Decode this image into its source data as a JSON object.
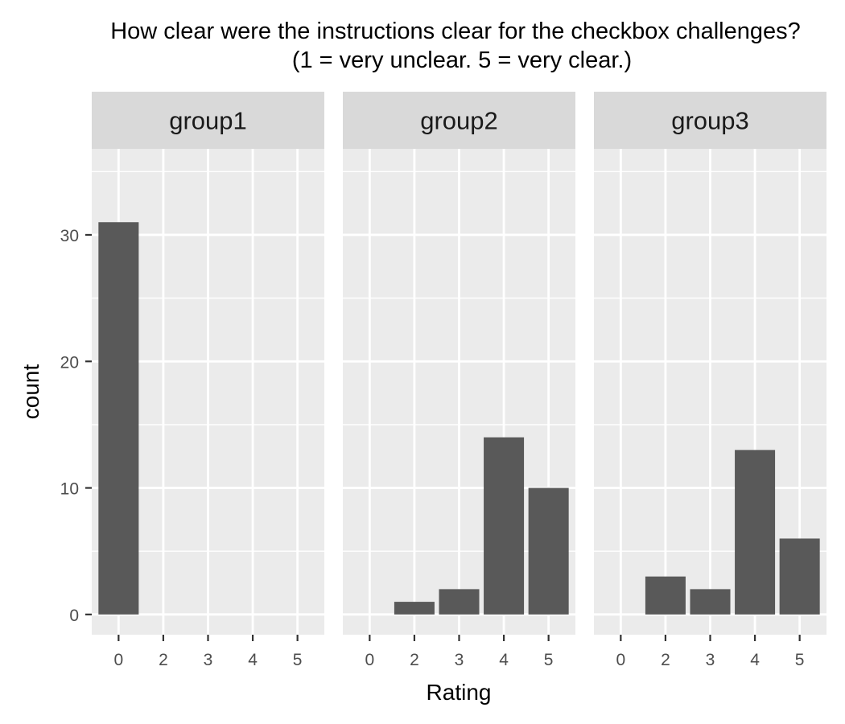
{
  "chart_data": {
    "type": "bar",
    "title_line1": "How clear were the instructions clear for the checkbox challenges?",
    "title_line2": "(1 = very unclear. 5 = very clear.)",
    "xlabel": "Rating",
    "ylabel": "count",
    "categories": [
      "0",
      "2",
      "3",
      "4",
      "5"
    ],
    "ylim": [
      -1.6,
      36.8
    ],
    "yticks": [
      0,
      10,
      20,
      30
    ],
    "grid": true,
    "bar_color": "#595959",
    "panel_bg": "#ebebeb",
    "strip_bg": "#d9d9d9",
    "facets": [
      {
        "name": "group1",
        "values": [
          31,
          0,
          0,
          0,
          0
        ]
      },
      {
        "name": "group2",
        "values": [
          0,
          1,
          2,
          14,
          10
        ]
      },
      {
        "name": "group3",
        "values": [
          0,
          3,
          2,
          13,
          6
        ]
      }
    ]
  }
}
